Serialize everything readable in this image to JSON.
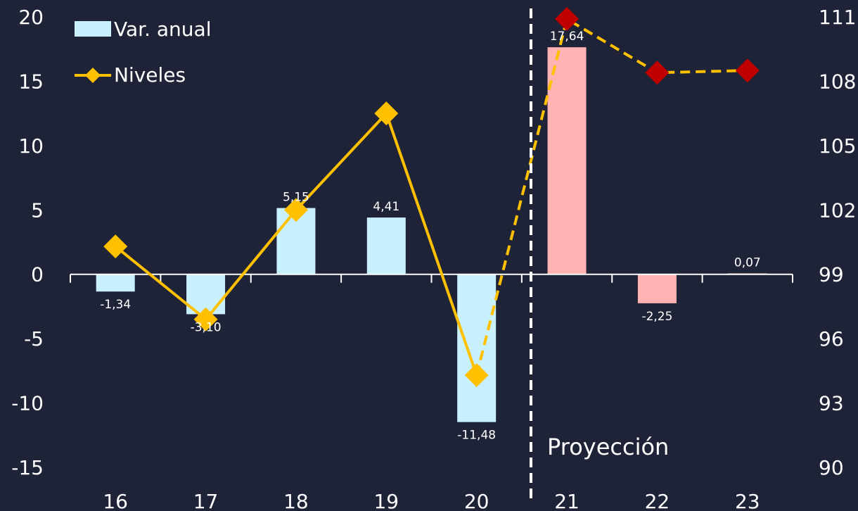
{
  "chart_data": {
    "type": "bar",
    "categories": [
      "16",
      "17",
      "18",
      "19",
      "20",
      "21",
      "22",
      "23"
    ],
    "series": [
      {
        "name": "Var. anual",
        "type": "bar",
        "axis": "left",
        "values": [
          -1.34,
          -3.1,
          5.15,
          4.41,
          -11.48,
          17.64,
          -2.25,
          0.07
        ],
        "labels": [
          "-1,34",
          "-3,10",
          "5,15",
          "4,41",
          "-11,48",
          "17,64",
          "-2,25",
          "0,07"
        ],
        "colors": [
          "#c9f0ff",
          "#c9f0ff",
          "#c9f0ff",
          "#c9f0ff",
          "#c9f0ff",
          "#ffb3b3",
          "#ffb3b3",
          "#ffb3b3"
        ]
      },
      {
        "name": "Niveles",
        "type": "line",
        "axis": "right",
        "values": [
          100.3,
          96.9,
          102.0,
          106.5,
          94.3,
          110.9,
          108.4,
          108.5
        ],
        "colors": [
          "#ffc000",
          "#ffc000",
          "#ffc000",
          "#ffc000",
          "#ffc000",
          "#c00000",
          "#c00000",
          "#c00000"
        ],
        "line_color": "#ffc000",
        "dashed_from_index": 4
      }
    ],
    "y_left": {
      "min": -15,
      "max": 20,
      "ticks": [
        "20",
        "15",
        "10",
        "5",
        "0",
        "-5",
        "-10",
        "-15"
      ]
    },
    "y_right": {
      "min": 90,
      "max": 111,
      "ticks": [
        "111",
        "108",
        "105",
        "102",
        "99",
        "96",
        "93",
        "90"
      ]
    },
    "projection_label": "Proyección",
    "projection_after_index": 4,
    "legend": {
      "position": "top-left",
      "bar_label": "Var. anual",
      "line_label": "Niveles"
    },
    "grid": false,
    "colors": {
      "background": "#1f2338",
      "axis": "#ffffff",
      "bar_actual": "#c9f0ff",
      "bar_projection": "#ffb3b3",
      "line": "#ffc000",
      "marker_projection": "#c00000"
    }
  }
}
